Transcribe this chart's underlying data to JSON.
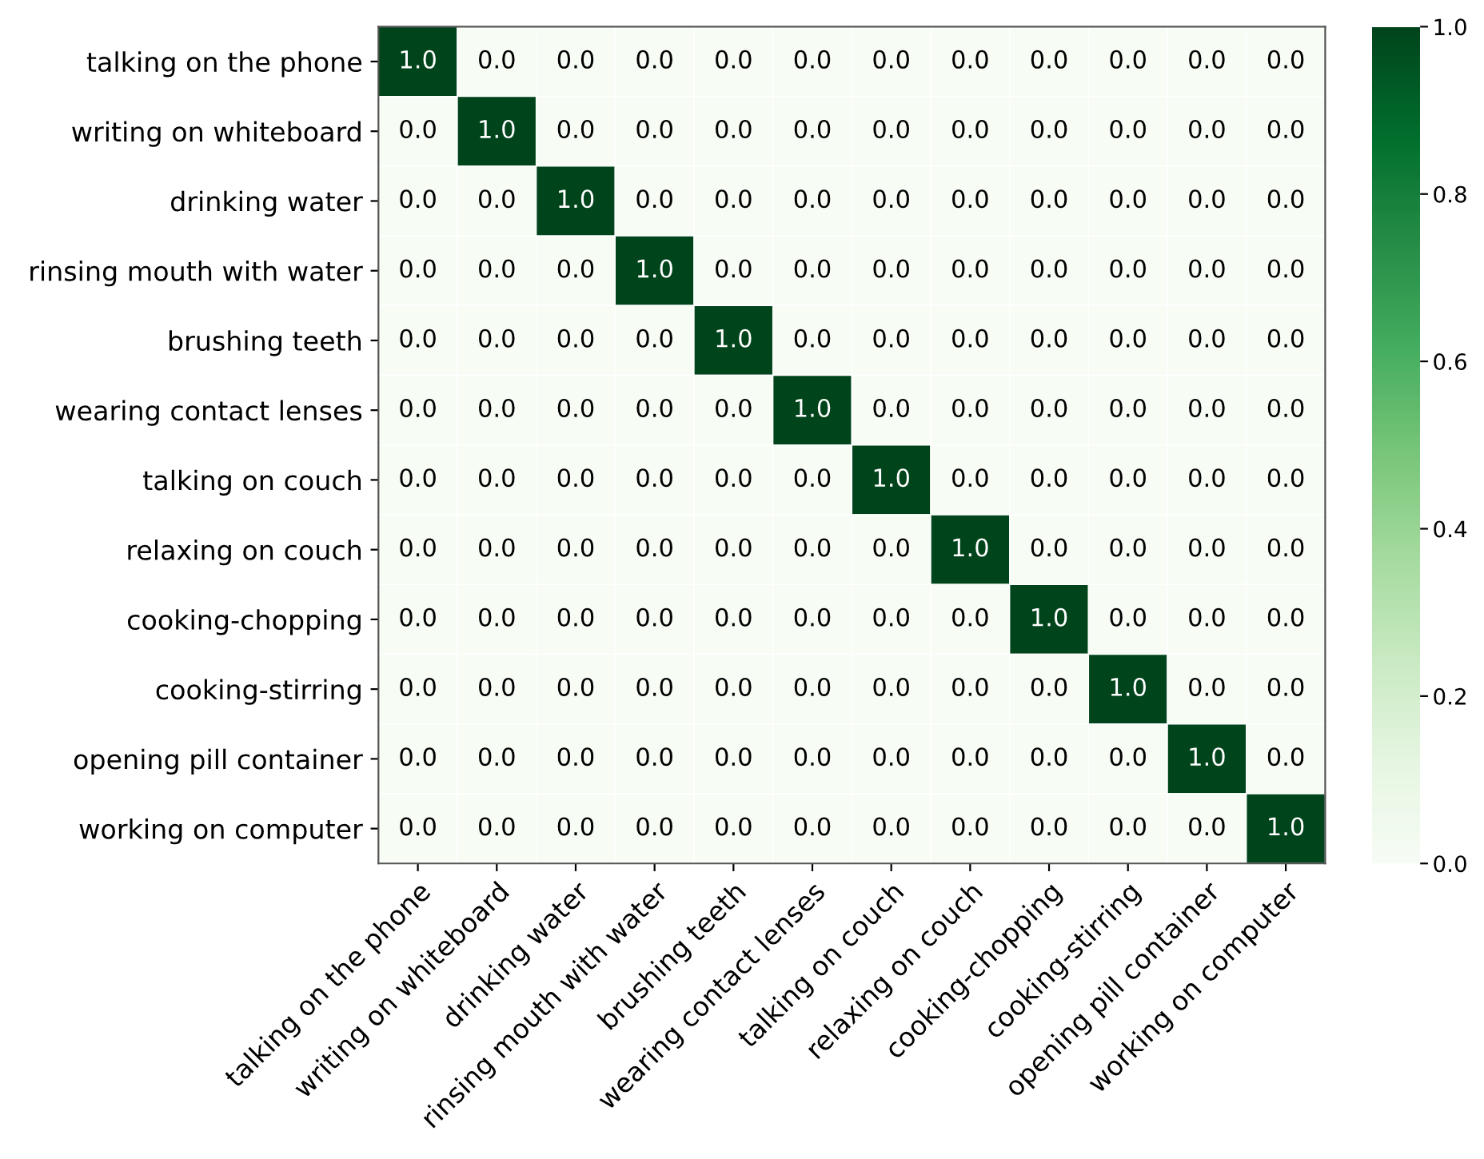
{
  "chart_data": {
    "type": "heatmap",
    "categories": [
      "talking on the phone",
      "writing on whiteboard",
      "drinking water",
      "rinsing mouth with water",
      "brushing teeth",
      "wearing contact lenses",
      "talking on couch",
      "relaxing on couch",
      "cooking-chopping",
      "cooking-stirring",
      "opening pill container",
      "working on computer"
    ],
    "y_categories": [
      "talking on the phone",
      "writing on whiteboard",
      "drinking water",
      "rinsing mouth with water",
      "brushing teeth",
      "wearing contact lenses",
      "talking on couch",
      "relaxing on couch",
      "cooking-chopping",
      "cooking-stirring",
      "opening pill container",
      "working on computer"
    ],
    "cells": [
      [
        1,
        0,
        0,
        0,
        0,
        0,
        0,
        0,
        0,
        0,
        0,
        0
      ],
      [
        0,
        1,
        0,
        0,
        0,
        0,
        0,
        0,
        0,
        0,
        0,
        0
      ],
      [
        0,
        0,
        1,
        0,
        0,
        0,
        0,
        0,
        0,
        0,
        0,
        0
      ],
      [
        0,
        0,
        0,
        1,
        0,
        0,
        0,
        0,
        0,
        0,
        0,
        0
      ],
      [
        0,
        0,
        0,
        0,
        1,
        0,
        0,
        0,
        0,
        0,
        0,
        0
      ],
      [
        0,
        0,
        0,
        0,
        0,
        1,
        0,
        0,
        0,
        0,
        0,
        0
      ],
      [
        0,
        0,
        0,
        0,
        0,
        0,
        1,
        0,
        0,
        0,
        0,
        0
      ],
      [
        0,
        0,
        0,
        0,
        0,
        0,
        0,
        1,
        0,
        0,
        0,
        0
      ],
      [
        0,
        0,
        0,
        0,
        0,
        0,
        0,
        0,
        1,
        0,
        0,
        0
      ],
      [
        0,
        0,
        0,
        0,
        0,
        0,
        0,
        0,
        0,
        1,
        0,
        0
      ],
      [
        0,
        0,
        0,
        0,
        0,
        0,
        0,
        0,
        0,
        0,
        1,
        0
      ],
      [
        0,
        0,
        0,
        0,
        0,
        0,
        0,
        0,
        0,
        0,
        0,
        1
      ]
    ],
    "cell_labels": [
      [
        "1.0",
        "0.0",
        "0.0",
        "0.0",
        "0.0",
        "0.0",
        "0.0",
        "0.0",
        "0.0",
        "0.0",
        "0.0",
        "0.0"
      ],
      [
        "0.0",
        "1.0",
        "0.0",
        "0.0",
        "0.0",
        "0.0",
        "0.0",
        "0.0",
        "0.0",
        "0.0",
        "0.0",
        "0.0"
      ],
      [
        "0.0",
        "0.0",
        "1.0",
        "0.0",
        "0.0",
        "0.0",
        "0.0",
        "0.0",
        "0.0",
        "0.0",
        "0.0",
        "0.0"
      ],
      [
        "0.0",
        "0.0",
        "0.0",
        "1.0",
        "0.0",
        "0.0",
        "0.0",
        "0.0",
        "0.0",
        "0.0",
        "0.0",
        "0.0"
      ],
      [
        "0.0",
        "0.0",
        "0.0",
        "0.0",
        "1.0",
        "0.0",
        "0.0",
        "0.0",
        "0.0",
        "0.0",
        "0.0",
        "0.0"
      ],
      [
        "0.0",
        "0.0",
        "0.0",
        "0.0",
        "0.0",
        "1.0",
        "0.0",
        "0.0",
        "0.0",
        "0.0",
        "0.0",
        "0.0"
      ],
      [
        "0.0",
        "0.0",
        "0.0",
        "0.0",
        "0.0",
        "0.0",
        "1.0",
        "0.0",
        "0.0",
        "0.0",
        "0.0",
        "0.0"
      ],
      [
        "0.0",
        "0.0",
        "0.0",
        "0.0",
        "0.0",
        "0.0",
        "0.0",
        "1.0",
        "0.0",
        "0.0",
        "0.0",
        "0.0"
      ],
      [
        "0.0",
        "0.0",
        "0.0",
        "0.0",
        "0.0",
        "0.0",
        "0.0",
        "0.0",
        "1.0",
        "0.0",
        "0.0",
        "0.0"
      ],
      [
        "0.0",
        "0.0",
        "0.0",
        "0.0",
        "0.0",
        "0.0",
        "0.0",
        "0.0",
        "0.0",
        "1.0",
        "0.0",
        "0.0"
      ],
      [
        "0.0",
        "0.0",
        "0.0",
        "0.0",
        "0.0",
        "0.0",
        "0.0",
        "0.0",
        "0.0",
        "0.0",
        "1.0",
        "0.0"
      ],
      [
        "0.0",
        "0.0",
        "0.0",
        "0.0",
        "0.0",
        "0.0",
        "0.0",
        "0.0",
        "0.0",
        "0.0",
        "0.0",
        "1.0"
      ]
    ],
    "clim": [
      0,
      1
    ],
    "cticks": [
      {
        "value": 0,
        "label": "0.0"
      },
      0.2,
      0.4,
      0.6,
      0.8,
      {
        "value": 1,
        "label": "1.0"
      }
    ]
  }
}
